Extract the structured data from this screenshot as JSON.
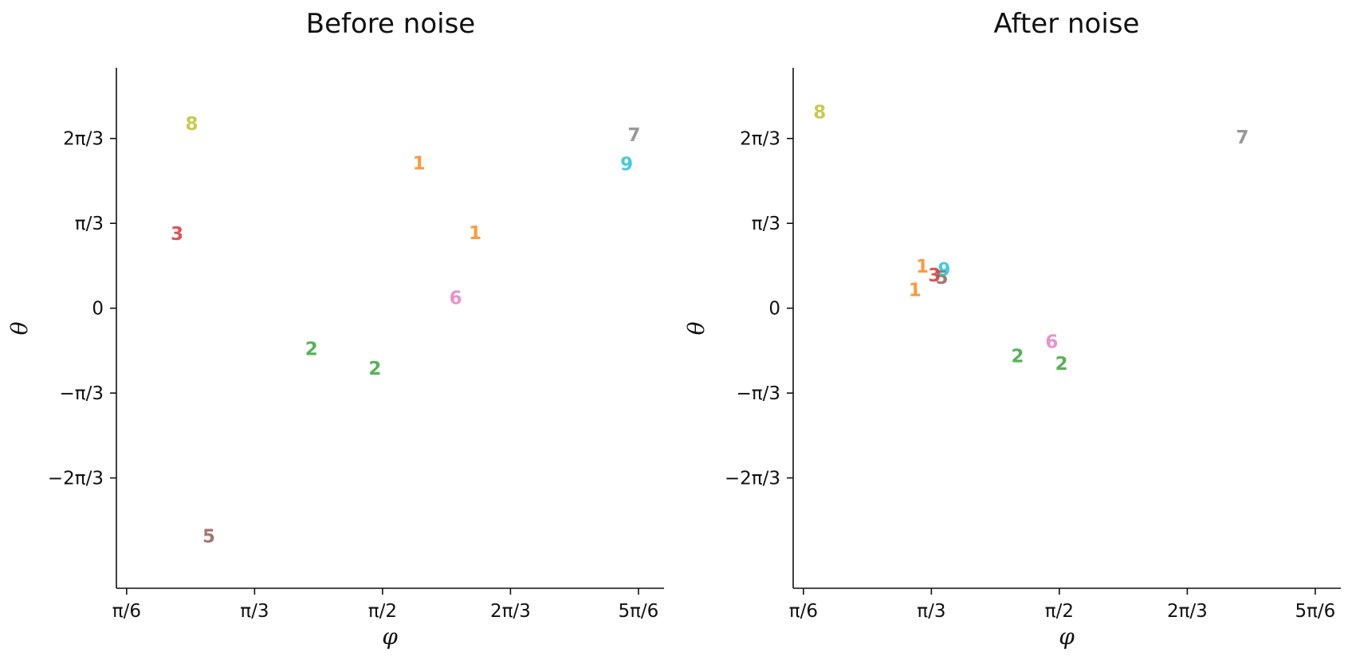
{
  "chart_data": [
    {
      "type": "scatter",
      "title": "Before noise",
      "xlabel": "φ",
      "ylabel": "θ",
      "xlim": [
        0.4817,
        2.7227
      ],
      "ylim": [
        -3.4559,
        2.9671
      ],
      "x_ticks": [
        {
          "value": 0.5236,
          "label": "π/6"
        },
        {
          "value": 1.0472,
          "label": "π/3"
        },
        {
          "value": 1.5708,
          "label": "π/2"
        },
        {
          "value": 2.0944,
          "label": "2π/3"
        },
        {
          "value": 2.618,
          "label": "5π/6"
        }
      ],
      "y_ticks": [
        {
          "value": -2.0944,
          "label": "−2π/3"
        },
        {
          "value": -1.0472,
          "label": "−π/3"
        },
        {
          "value": 0,
          "label": "0"
        },
        {
          "value": 1.0472,
          "label": "π/3"
        },
        {
          "value": 2.0944,
          "label": "2π/3"
        }
      ],
      "points": [
        {
          "label": "8",
          "x": 0.79,
          "y": 2.28,
          "color": "#bcbd22"
        },
        {
          "label": "7",
          "x": 2.6,
          "y": 2.14,
          "color": "#7f7f7f"
        },
        {
          "label": "1",
          "x": 1.72,
          "y": 1.79,
          "color": "#ff7f0e"
        },
        {
          "label": "9",
          "x": 2.57,
          "y": 1.78,
          "color": "#17becf"
        },
        {
          "label": "3",
          "x": 0.73,
          "y": 0.92,
          "color": "#d62728"
        },
        {
          "label": "1",
          "x": 1.95,
          "y": 0.93,
          "color": "#ff7f0e"
        },
        {
          "label": "6",
          "x": 1.87,
          "y": 0.13,
          "color": "#e377c2"
        },
        {
          "label": "2",
          "x": 1.28,
          "y": -0.5,
          "color": "#2ca02c"
        },
        {
          "label": "2",
          "x": 1.54,
          "y": -0.74,
          "color": "#2ca02c"
        },
        {
          "label": "5",
          "x": 0.86,
          "y": -2.81,
          "color": "#8c564b"
        }
      ]
    },
    {
      "type": "scatter",
      "title": "After noise",
      "xlabel": "φ",
      "ylabel": "θ",
      "xlim": [
        0.4817,
        2.7227
      ],
      "ylim": [
        -3.4559,
        2.9671
      ],
      "x_ticks": [
        {
          "value": 0.5236,
          "label": "π/6"
        },
        {
          "value": 1.0472,
          "label": "π/3"
        },
        {
          "value": 1.5708,
          "label": "π/2"
        },
        {
          "value": 2.0944,
          "label": "2π/3"
        },
        {
          "value": 2.618,
          "label": "5π/6"
        }
      ],
      "y_ticks": [
        {
          "value": -2.0944,
          "label": "−2π/3"
        },
        {
          "value": -1.0472,
          "label": "−π/3"
        },
        {
          "value": 0,
          "label": "0"
        },
        {
          "value": 1.0472,
          "label": "π/3"
        },
        {
          "value": 2.0944,
          "label": "2π/3"
        }
      ],
      "points": [
        {
          "label": "8",
          "x": 0.59,
          "y": 2.42,
          "color": "#bcbd22"
        },
        {
          "label": "7",
          "x": 2.32,
          "y": 2.11,
          "color": "#7f7f7f"
        },
        {
          "label": "1",
          "x": 0.98,
          "y": 0.23,
          "color": "#ff7f0e"
        },
        {
          "label": "1",
          "x": 1.01,
          "y": 0.52,
          "color": "#ff7f0e"
        },
        {
          "label": "3",
          "x": 1.06,
          "y": 0.41,
          "color": "#d62728"
        },
        {
          "label": "5",
          "x": 1.09,
          "y": 0.38,
          "color": "#8c564b"
        },
        {
          "label": "9",
          "x": 1.1,
          "y": 0.48,
          "color": "#17becf"
        },
        {
          "label": "6",
          "x": 1.54,
          "y": -0.41,
          "color": "#e377c2"
        },
        {
          "label": "2",
          "x": 1.4,
          "y": -0.59,
          "color": "#2ca02c"
        },
        {
          "label": "2",
          "x": 1.58,
          "y": -0.68,
          "color": "#2ca02c"
        }
      ]
    }
  ]
}
